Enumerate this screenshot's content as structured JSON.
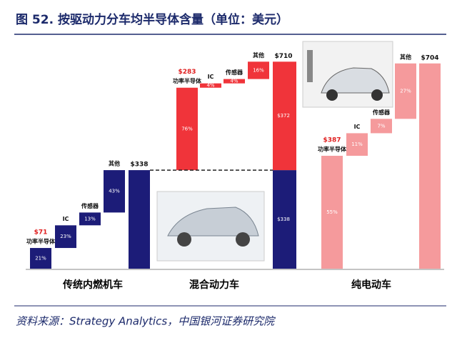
{
  "chart_data": {
    "type": "waterfall",
    "title": "图 52. 按驱动力分车均半导体含量（单位：美元）",
    "source": "资料来源：Strategy Analytics，中国银河证券研究院",
    "ylim": [
      0,
      750
    ],
    "groups": [
      {
        "name": "传统内燃机车",
        "color": "#1c1c78",
        "categories": [
          "功率半导体",
          "IC",
          "传感器",
          "其他"
        ],
        "values": [
          21,
          23,
          13,
          43
        ],
        "value_labels": [
          "21%",
          "23%",
          "13%",
          "43%"
        ],
        "first_amount": 71,
        "first_amount_label": "$71",
        "total": 338,
        "total_label": "$338"
      },
      {
        "name": "混合动力车",
        "color": "#f0343a",
        "categories": [
          "功率半导体",
          "IC",
          "传感器",
          "其他"
        ],
        "values": [
          76,
          4,
          4,
          16
        ],
        "value_labels": [
          "76%",
          "4%",
          "4%",
          "16%"
        ],
        "first_amount": 283,
        "first_amount_label": "$283",
        "base": 338,
        "base_label": "$338",
        "base_color": "#1c1c78",
        "increment": 372,
        "increment_label": "$372",
        "total": 710,
        "total_label": "$710"
      },
      {
        "name": "纯电动车",
        "color": "#f59a9c",
        "categories": [
          "功率半导体",
          "IC",
          "传感器",
          "其他"
        ],
        "values": [
          55,
          11,
          7,
          27
        ],
        "value_labels": [
          "55%",
          "11%",
          "7%",
          "27%"
        ],
        "first_amount": 387,
        "first_amount_label": "$387",
        "total": 704,
        "total_label": "$704"
      }
    ]
  }
}
